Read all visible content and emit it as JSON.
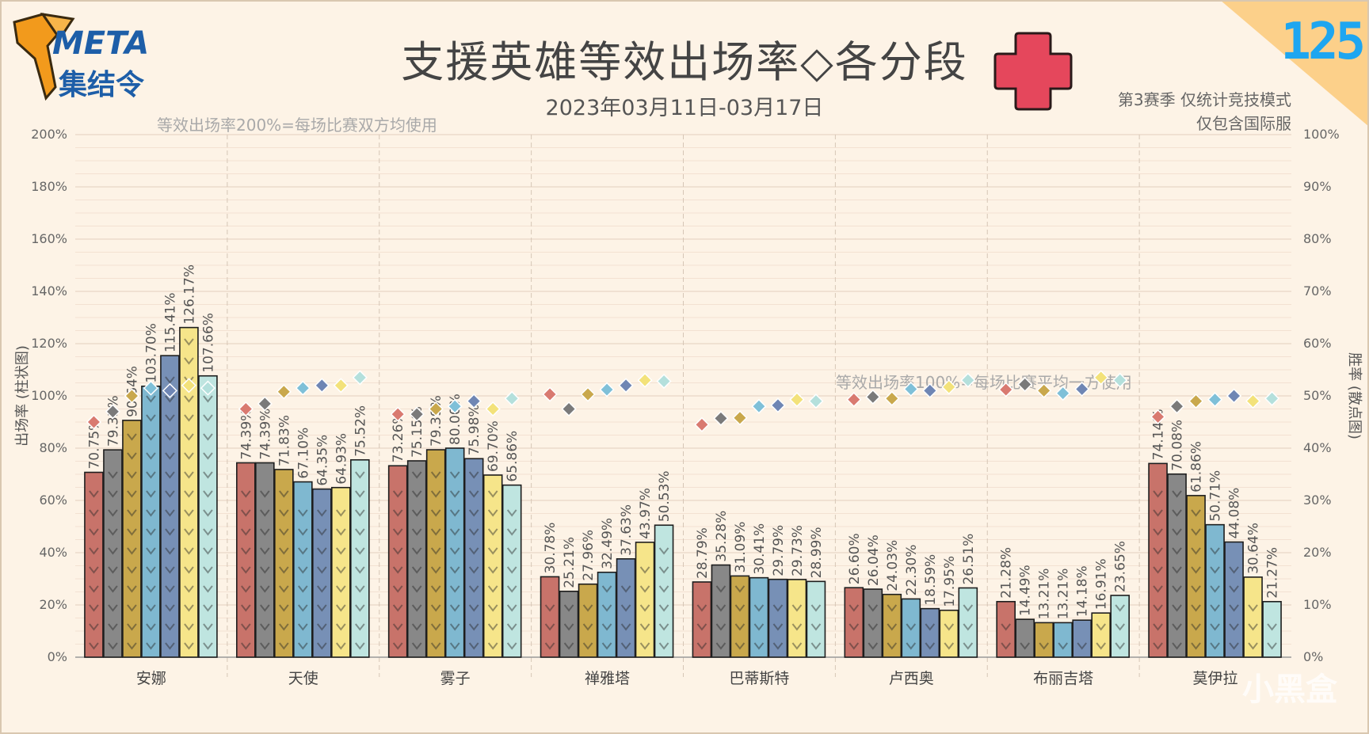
{
  "header": {
    "title": "支援英雄等效出场率◇各分段",
    "date_range": "2023年03月11日-03月17日",
    "note_200": "等效出场率200%=每场比赛双方均使用",
    "note_100": "等效出场率100%=每场比赛平均一方使用",
    "season": "第3赛季 仅统计竞技模式",
    "region": "仅包含国际服",
    "issue_number": "125",
    "logo_top": "META",
    "logo_bottom": "集结令",
    "watermark": "小黑盒"
  },
  "colors": {
    "background": "#fdf3e6",
    "ranks": [
      "#c8736a",
      "#888888",
      "#c9a84c",
      "#7fb8d0",
      "#7790b6",
      "#f6e58a",
      "#bfe5e0"
    ],
    "win_rate_markers": [
      "#d97a70",
      "#7a7a7a",
      "#c9a84c",
      "#7fc0d8",
      "#6f86b4",
      "#f3e27a",
      "#b4e0dc"
    ],
    "cross": "#e5475c",
    "issue": "#1ea6f0"
  },
  "chart_data": {
    "type": "bar",
    "categories": [
      "安娜",
      "天使",
      "雾子",
      "禅雅塔",
      "巴蒂斯特",
      "卢西奥",
      "布丽吉塔",
      "莫伊拉"
    ],
    "ylabel": "出场率 (柱状图)",
    "y2label": "胜率 (散点图)",
    "ylim": [
      0,
      200
    ],
    "y2lim": [
      0,
      100
    ],
    "yticks": [
      "0%",
      "20%",
      "40%",
      "60%",
      "80%",
      "100%",
      "120%",
      "140%",
      "160%",
      "180%",
      "200%"
    ],
    "y2ticks": [
      "0%",
      "10%",
      "20%",
      "30%",
      "40%",
      "50%",
      "60%",
      "70%",
      "80%",
      "90%",
      "100%"
    ],
    "grid": true,
    "series": [
      {
        "bar_values": [
          70.75,
          74.39,
          73.26,
          30.78,
          28.79,
          26.6,
          21.28,
          74.14
        ],
        "bar_labels": [
          "70.75%",
          "74.39%",
          "73.26%",
          "30.78%",
          "28.79%",
          "26.60%",
          "21.28%",
          "74.14%"
        ],
        "win_rates": [
          45,
          47.5,
          46.5,
          50.3,
          44.5,
          49.3,
          51.2,
          46
        ]
      },
      {
        "bar_values": [
          79.35,
          74.39,
          75.15,
          25.21,
          35.28,
          26.04,
          14.49,
          70.08
        ],
        "bar_labels": [
          "79.35%",
          "74.39%",
          "75.15%",
          "25.21%",
          "35.28%",
          "26.04%",
          "14.49%",
          "70.08%"
        ],
        "win_rates": [
          47,
          48.5,
          46.5,
          47.5,
          45.7,
          49.8,
          52.2,
          48
        ]
      },
      {
        "bar_values": [
          90.64,
          71.83,
          79.39,
          27.96,
          31.09,
          24.03,
          13.21,
          61.86
        ],
        "bar_labels": [
          "90.64%",
          "71.83%",
          "79.39%",
          "27.96%",
          "31.09%",
          "24.03%",
          "13.21%",
          "61.86%"
        ],
        "win_rates": [
          50,
          50.8,
          47.5,
          50.3,
          45.8,
          49.5,
          51,
          49
        ]
      },
      {
        "bar_values": [
          103.7,
          67.1,
          80.0,
          32.49,
          30.41,
          22.3,
          13.21,
          50.71
        ],
        "bar_labels": [
          "103.70%",
          "67.10%",
          "80.00%",
          "32.49%",
          "30.41%",
          "22.30%",
          "13.21%",
          "50.71%"
        ],
        "win_rates": [
          51.5,
          51.5,
          48,
          51.2,
          48,
          51.3,
          50.5,
          49.3
        ]
      },
      {
        "bar_values": [
          115.41,
          64.35,
          75.98,
          37.63,
          29.79,
          18.59,
          14.18,
          44.08
        ],
        "bar_labels": [
          "115.41%",
          "64.35%",
          "75.98%",
          "37.63%",
          "29.79%",
          "18.59%",
          "14.18%",
          "44.08%"
        ],
        "win_rates": [
          51,
          52,
          49,
          52,
          48.2,
          51,
          51.3,
          50
        ]
      },
      {
        "bar_values": [
          126.17,
          64.93,
          69.7,
          43.97,
          29.73,
          17.95,
          16.91,
          30.64
        ],
        "bar_labels": [
          "126.17%",
          "64.93%",
          "69.70%",
          "43.97%",
          "29.73%",
          "17.95%",
          "16.91%",
          "30.64%"
        ],
        "win_rates": [
          52,
          52,
          47.5,
          53,
          49.3,
          51.7,
          53.5,
          49
        ]
      },
      {
        "bar_values": [
          107.66,
          75.52,
          65.86,
          50.53,
          28.99,
          26.51,
          23.65,
          21.27
        ],
        "bar_labels": [
          "107.66%",
          "75.52%",
          "65.86%",
          "50.53%",
          "28.99%",
          "26.51%",
          "23.65%",
          "21.27%"
        ],
        "win_rates": [
          51.5,
          53.5,
          49.5,
          52.8,
          49,
          53,
          53,
          49.5
        ]
      }
    ]
  }
}
